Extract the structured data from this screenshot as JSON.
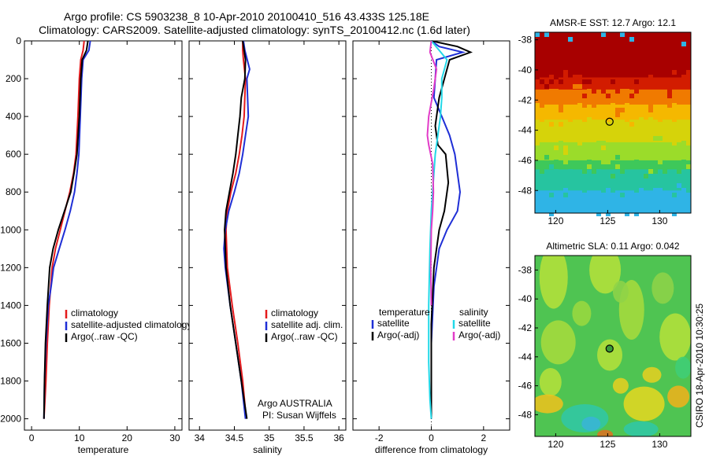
{
  "header": {
    "line1": "Argo profile: CS 5903238_8 10-Apr-2010 20100410_516 43.433S 125.18E",
    "line2": "Climatology: CARS2009. Satellite-adjusted climatology: synTS_20100412.nc (1.6d later)"
  },
  "side_label": "CSIRO 18-Apr-2010 10:30:25",
  "colors": {
    "climatology": "#e41a1c",
    "satellite": "#1f2fd6",
    "argo": "#000000",
    "salinity_satellite": "#22d8e8",
    "salinity_argo": "#e23cc8"
  },
  "chart_data": [
    {
      "type": "line",
      "xlabel": "temperature",
      "ylabel": "",
      "xlim": [
        -1.5,
        31.5
      ],
      "ylim": [
        2060,
        0
      ],
      "xticks": [
        0,
        10,
        20,
        30
      ],
      "yticks": [
        0,
        200,
        400,
        600,
        800,
        1000,
        1200,
        1400,
        1600,
        1800,
        2000
      ],
      "legend": {
        "position": "bottom-middle",
        "entries": [
          "climatology",
          "satellite-adjusted climatology",
          "Argo(..raw -QC)"
        ]
      },
      "series": [
        {
          "name": "climatology",
          "color": "#e41a1c",
          "x": [
            11.0,
            10.8,
            10.3,
            10.0,
            9.7,
            9.3,
            8.8,
            8.0,
            7.0,
            6.0,
            5.0,
            4.3,
            3.7,
            3.3,
            3.0,
            2.8,
            2.6
          ],
          "y": [
            0,
            50,
            100,
            200,
            400,
            600,
            700,
            800,
            900,
            1000,
            1100,
            1200,
            1400,
            1600,
            1800,
            1900,
            2000
          ]
        },
        {
          "name": "satellite-adjusted climatology",
          "color": "#1f2fd6",
          "x": [
            12.3,
            12.0,
            10.8,
            10.5,
            10.2,
            9.9,
            9.5,
            9.0,
            8.1,
            7.0,
            5.8,
            4.6,
            4.1,
            3.5,
            3.0,
            2.7,
            2.6
          ],
          "y": [
            0,
            50,
            100,
            200,
            400,
            600,
            700,
            800,
            900,
            1000,
            1100,
            1200,
            1300,
            1400,
            1600,
            1800,
            2000
          ]
        },
        {
          "name": "Argo(..raw -QC)",
          "color": "#000000",
          "x": [
            11.8,
            11.5,
            10.6,
            10.3,
            10.0,
            9.5,
            8.9,
            8.2,
            6.9,
            5.6,
            4.5,
            3.8,
            3.3,
            2.9,
            2.7,
            2.6
          ],
          "y": [
            0,
            50,
            100,
            200,
            400,
            600,
            700,
            800,
            900,
            1000,
            1100,
            1200,
            1400,
            1600,
            1800,
            2000
          ]
        }
      ]
    },
    {
      "type": "line",
      "xlabel": "salinity",
      "ylabel": "",
      "xlim": [
        33.85,
        36.1
      ],
      "ylim": [
        2060,
        0
      ],
      "xticks": [
        34,
        34.5,
        35,
        35.5,
        36
      ],
      "yticks": [],
      "legend": {
        "position": "bottom-right",
        "entries": [
          "climatology",
          "satellite adj. clim.",
          "Argo(..raw -QC)"
        ]
      },
      "annotation": [
        "Argo AUSTRALIA",
        "PI: Susan Wijffels"
      ],
      "series": [
        {
          "name": "climatology",
          "color": "#e41a1c",
          "x": [
            34.62,
            34.62,
            34.63,
            34.66,
            34.64,
            34.61,
            34.57,
            34.52,
            34.45,
            34.4,
            34.38,
            34.4,
            34.47,
            34.55,
            34.62,
            34.67
          ],
          "y": [
            0,
            50,
            100,
            200,
            400,
            500,
            600,
            700,
            800,
            900,
            1000,
            1200,
            1400,
            1600,
            1800,
            2000
          ]
        },
        {
          "name": "satellite adj. clim.",
          "color": "#1f2fd6",
          "x": [
            34.63,
            34.65,
            34.72,
            34.68,
            34.7,
            34.66,
            34.62,
            34.57,
            34.5,
            34.42,
            34.37,
            34.35,
            34.37,
            34.44,
            34.52,
            34.6,
            34.66
          ],
          "y": [
            0,
            50,
            150,
            200,
            400,
            500,
            600,
            700,
            800,
            900,
            1000,
            1100,
            1200,
            1400,
            1600,
            1800,
            2000
          ]
        },
        {
          "name": "Argo(..raw -QC)",
          "color": "#000000",
          "x": [
            34.62,
            34.64,
            34.66,
            34.65,
            34.6,
            34.58,
            34.55,
            34.52,
            34.48,
            34.43,
            34.38,
            34.36,
            34.38,
            34.44,
            34.52,
            34.6,
            34.68
          ],
          "y": [
            0,
            50,
            100,
            200,
            300,
            400,
            500,
            600,
            700,
            800,
            900,
            1000,
            1200,
            1400,
            1600,
            1800,
            2000
          ]
        }
      ]
    },
    {
      "type": "line",
      "xlabel": "difference from climatology",
      "ylabel": "",
      "xlim": [
        -3.0,
        3.0
      ],
      "ylim": [
        2060,
        0
      ],
      "xticks": [
        -2,
        0,
        2
      ],
      "yticks": [],
      "legend": {
        "position": "bottom-middle",
        "groups": [
          {
            "title": "temperature",
            "entries": [
              "satellite",
              "Argo(-adj)"
            ]
          },
          {
            "title": "salinity",
            "entries": [
              "satellite",
              "Argo(-adj)"
            ]
          }
        ]
      },
      "series": [
        {
          "name": "temperature satellite",
          "color": "#1f2fd6",
          "x": [
            0.0,
            0.3,
            1.2,
            0.2,
            0.15,
            0.1,
            0.4,
            0.7,
            0.9,
            1.1,
            1.0,
            0.6,
            0.3,
            0.1,
            0.0,
            0.0
          ],
          "y": [
            0,
            30,
            60,
            100,
            200,
            300,
            400,
            500,
            600,
            800,
            900,
            1000,
            1100,
            1300,
            1600,
            2000
          ]
        },
        {
          "name": "temperature Argo(-adj)",
          "color": "#000000",
          "x": [
            0.0,
            1.0,
            1.5,
            0.7,
            0.3,
            0.15,
            0.25,
            0.55,
            0.65,
            0.5,
            0.3,
            0.1,
            0.0,
            0.0
          ],
          "y": [
            0,
            30,
            60,
            100,
            300,
            450,
            550,
            600,
            750,
            900,
            1000,
            1200,
            1500,
            2000
          ]
        },
        {
          "name": "salinity satellite",
          "color": "#22d8e8",
          "x": [
            0.0,
            0.3,
            0.6,
            0.4,
            0.4,
            0.35,
            0.25,
            0.15,
            0.1,
            0.0,
            -0.05,
            -0.1,
            -0.1,
            -0.05,
            0.0
          ],
          "y": [
            0,
            50,
            100,
            200,
            300,
            400,
            500,
            600,
            700,
            900,
            1100,
            1400,
            1700,
            1900,
            2000
          ]
        },
        {
          "name": "salinity Argo(-adj)",
          "color": "#e23cc8",
          "x": [
            0.0,
            -0.05,
            0.2,
            0.1,
            -0.1,
            -0.15,
            -0.1,
            0.05,
            0.08,
            0.05,
            0.0,
            -0.02,
            0.0
          ],
          "y": [
            0,
            60,
            150,
            250,
            400,
            500,
            550,
            650,
            800,
            900,
            1000,
            1200,
            1400
          ]
        }
      ]
    },
    {
      "type": "heatmap",
      "title": "AMSR-E SST: 12.7 Argo: 12.1",
      "xlim": [
        118,
        133
      ],
      "ylim": [
        -49.5,
        -37.5
      ],
      "xticks": [
        120,
        125,
        130
      ],
      "yticks": [
        -38,
        -40,
        -42,
        -44,
        -46,
        -48
      ],
      "marker": {
        "lon": 125.18,
        "lat": -43.433
      },
      "bands": [
        {
          "from": -37.5,
          "to": -40.5,
          "color": "#a80000"
        },
        {
          "from": -40.5,
          "to": -41.3,
          "color": "#d21c00"
        },
        {
          "from": -41.3,
          "to": -42.3,
          "color": "#f07a00"
        },
        {
          "from": -42.3,
          "to": -43.3,
          "color": "#f5b800"
        },
        {
          "from": -43.3,
          "to": -44.8,
          "color": "#d6d30a"
        },
        {
          "from": -44.8,
          "to": -46.0,
          "color": "#9bdc2a"
        },
        {
          "from": -46.0,
          "to": -46.6,
          "color": "#3ec85a"
        },
        {
          "from": -46.6,
          "to": -48.0,
          "color": "#26c4a0"
        },
        {
          "from": -48.0,
          "to": -49.5,
          "color": "#2fb4e6"
        }
      ]
    },
    {
      "type": "heatmap",
      "title": "Altimetric SLA: 0.11 Argo: 0.042",
      "xlim": [
        118,
        133
      ],
      "ylim": [
        -49.5,
        -37
      ],
      "xticks": [
        120,
        125,
        130
      ],
      "yticks": [
        -38,
        -40,
        -42,
        -44,
        -46,
        -48
      ],
      "marker": {
        "lon": 125.18,
        "lat": -43.433
      },
      "base_color": "#4fc452"
    }
  ]
}
